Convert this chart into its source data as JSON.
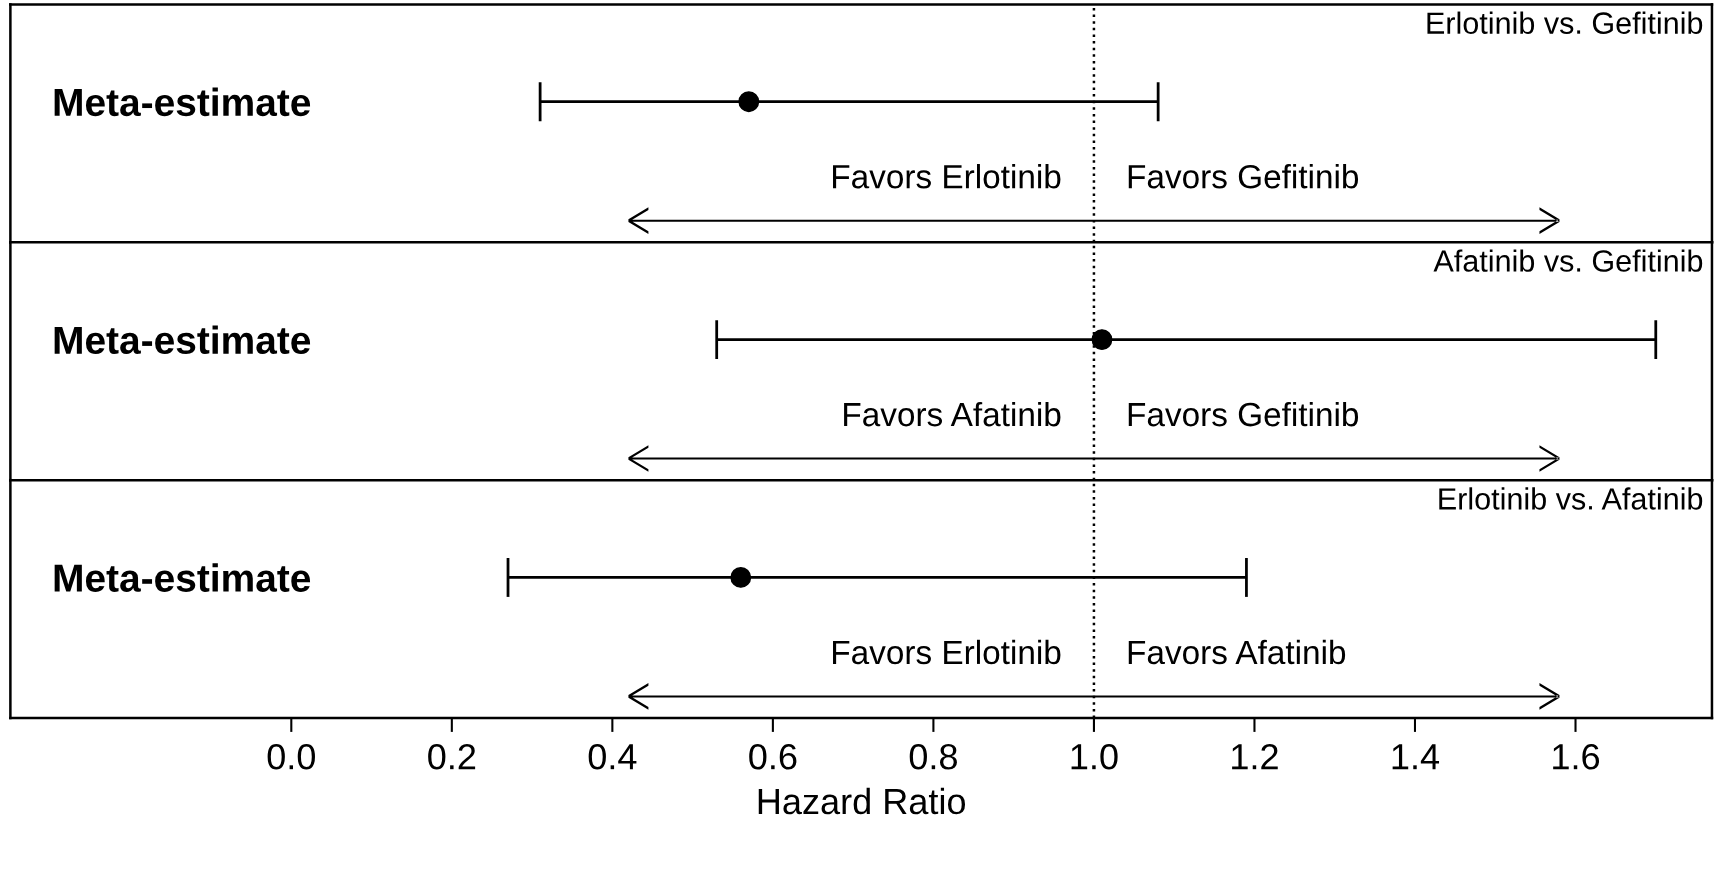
{
  "chart_data": [
    {
      "type": "scatter",
      "title": "Erlotinib vs. Gefitinib",
      "orientation": "horizontal",
      "categories": [
        "Meta-estimate"
      ],
      "values": [
        0.57
      ],
      "errors": [
        [
          0.31,
          1.08
        ]
      ],
      "color": "#000000",
      "marker": "circle",
      "xlim": [
        -0.35,
        1.77
      ],
      "tick_labels": "y",
      "ref_lines": [
        {
          "axis": "x",
          "value": 1.0,
          "line_style": "dotted",
          "color": "#000000"
        }
      ],
      "annotations": [
        "Favors Erlotinib",
        "Favors Gefitinib"
      ],
      "grid": false,
      "legend": false
    },
    {
      "type": "scatter",
      "title": "Afatinib vs. Gefitinib",
      "orientation": "horizontal",
      "categories": [
        "Meta-estimate"
      ],
      "values": [
        1.01
      ],
      "errors": [
        [
          0.53,
          1.7
        ]
      ],
      "color": "#000000",
      "marker": "circle",
      "xlim": [
        -0.35,
        1.77
      ],
      "tick_labels": "y",
      "ref_lines": [
        {
          "axis": "x",
          "value": 1.0,
          "line_style": "dotted",
          "color": "#000000"
        }
      ],
      "annotations": [
        "Favors Afatinib",
        "Favors Gefitinib"
      ],
      "grid": false,
      "legend": false
    },
    {
      "type": "scatter",
      "title": "Erlotinib vs. Afatinib",
      "orientation": "horizontal",
      "categories": [
        "Meta-estimate"
      ],
      "values": [
        0.56
      ],
      "errors": [
        [
          0.27,
          1.19
        ]
      ],
      "color": "#000000",
      "marker": "circle",
      "xlim": [
        -0.35,
        1.77
      ],
      "xticks": [
        {
          "value": 0,
          "label": "0.0"
        },
        0.2,
        0.4,
        0.6,
        0.8,
        {
          "value": 1,
          "label": "1.0"
        },
        1.2,
        1.4,
        1.6
      ],
      "xlabel": "Hazard Ratio",
      "ref_lines": [
        {
          "axis": "x",
          "value": 1.0,
          "line_style": "dotted",
          "color": "#000000"
        }
      ],
      "annotations": [
        "Favors Erlotinib",
        "Favors Afatinib"
      ],
      "grid": false,
      "legend": false
    }
  ]
}
